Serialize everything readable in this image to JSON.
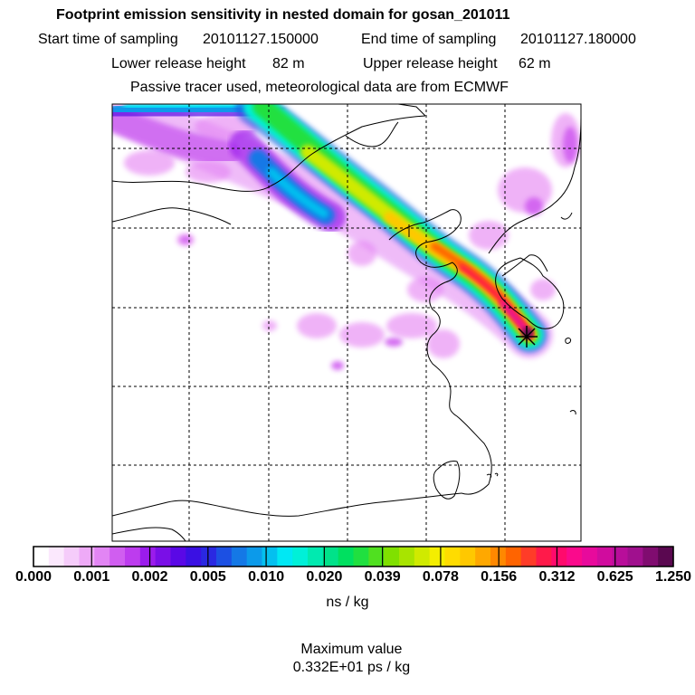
{
  "header": {
    "title": "Footprint emission sensitivity in nested domain for gosan_201011",
    "start_label": "Start time of sampling",
    "start_value": "20101127.150000",
    "end_label": "End time of sampling",
    "end_value": "20101127.180000",
    "lower_label": "Lower release height",
    "lower_value": "82 m",
    "upper_label": "Upper release height",
    "upper_value": "62 m",
    "tracer_note": "Passive tracer used, meteorological data are from ECMWF"
  },
  "map": {
    "receptor_symbol": "star-marker",
    "colors": {
      "coast": "#000000",
      "grid": "#000000"
    }
  },
  "colorbar": {
    "tick_labels": [
      "0.000",
      "0.001",
      "0.002",
      "0.005",
      "0.010",
      "0.020",
      "0.039",
      "0.078",
      "0.156",
      "0.312",
      "0.625",
      "1.250"
    ],
    "colors": [
      "#ffffff",
      "#fbe8fd",
      "#f5ccfa",
      "#eeaaf7",
      "#e285f4",
      "#d05ef0",
      "#bd3cee",
      "#9b1cec",
      "#7a0fe7",
      "#5a08e6",
      "#3a10e3",
      "#2a28e2",
      "#1c50e3",
      "#1478e6",
      "#0c9aea",
      "#04c0ef",
      "#00e8f4",
      "#00f0d8",
      "#00eab0",
      "#00e28a",
      "#00e060",
      "#20e040",
      "#50e020",
      "#80e000",
      "#a8e400",
      "#d0ea00",
      "#f4ee00",
      "#ffdc00",
      "#ffc800",
      "#ffa800",
      "#ff8800",
      "#ff6400",
      "#ff3c28",
      "#ff1a4a",
      "#ff0a6c",
      "#fa0a8c",
      "#e80a9c",
      "#d00c9e",
      "#b80e9a",
      "#a0108e",
      "#800c70",
      "#5a0850"
    ],
    "units": "ns / kg",
    "max_label": "Maximum value",
    "max_value": "0.332E+01 ps / kg"
  }
}
